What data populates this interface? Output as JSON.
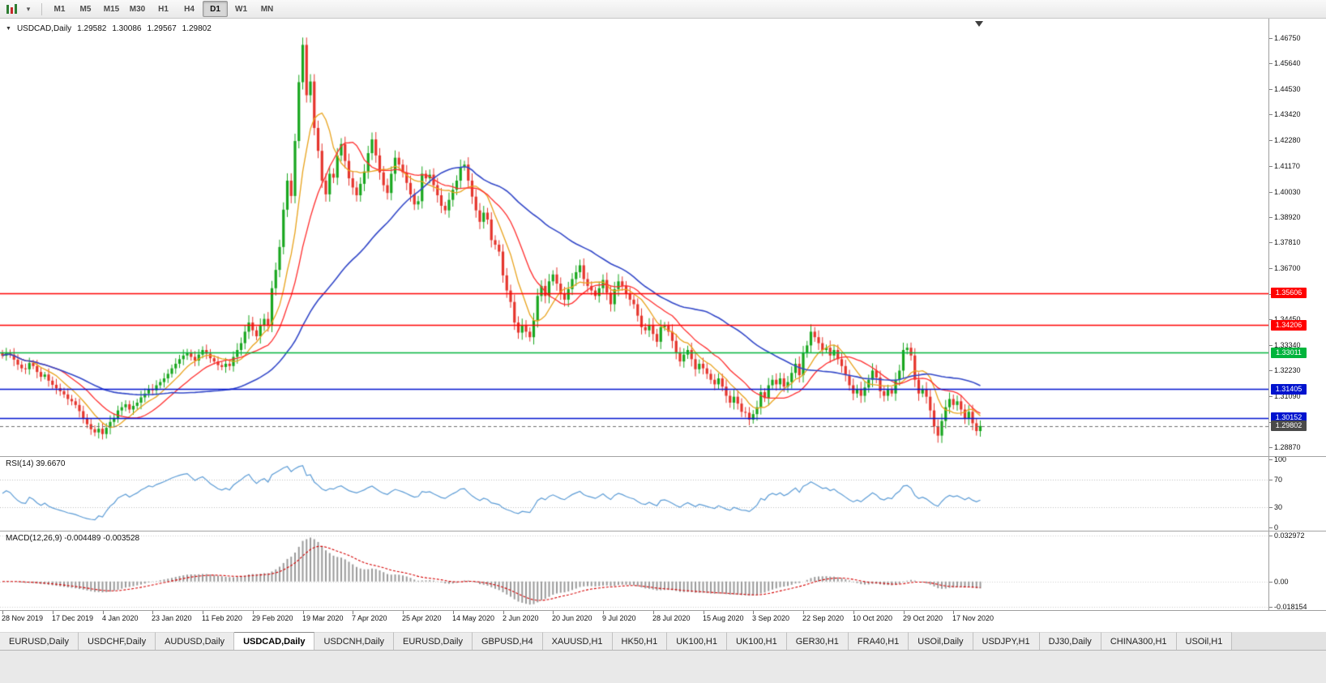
{
  "glyphs": {
    "title_caret": "▼",
    "toolbar_caret": "▾"
  },
  "toolbar": {
    "timeframes": [
      {
        "label": "M1",
        "active": false
      },
      {
        "label": "M5",
        "active": false
      },
      {
        "label": "M15",
        "active": false
      },
      {
        "label": "M30",
        "active": false
      },
      {
        "label": "H1",
        "active": false
      },
      {
        "label": "H4",
        "active": false
      },
      {
        "label": "D1",
        "active": true
      },
      {
        "label": "W1",
        "active": false
      },
      {
        "label": "MN",
        "active": false
      }
    ]
  },
  "chart_data": {
    "type": "candlestick",
    "symbol_period": "USDCAD,Daily",
    "ohlc_current": {
      "open": 1.29582,
      "high": 1.30086,
      "low": 1.29567,
      "close": 1.29802
    },
    "grid": false,
    "ylim": [
      1.2859,
      1.4749
    ],
    "y_ticks": [
      "1.46750",
      "1.45640",
      "1.44530",
      "1.43420",
      "1.42280",
      "1.41170",
      "1.40030",
      "1.38920",
      "1.37810",
      "1.36700",
      "1.35560",
      "1.34450",
      "1.33340",
      "1.32230",
      "1.31090",
      "1.29980",
      "1.28870"
    ],
    "x_labels": [
      "28 Nov 2019",
      "17 Dec 2019",
      "4 Jan 2020",
      "23 Jan 2020",
      "11 Feb 2020",
      "29 Feb 2020",
      "19 Mar 2020",
      "7 Apr 2020",
      "25 Apr 2020",
      "14 May 2020",
      "2 Jun 2020",
      "20 Jun 2020",
      "9 Jul 2020",
      "28 Jul 2020",
      "15 Aug 2020",
      "3 Sep 2020",
      "22 Sep 2020",
      "10 Oct 2020",
      "29 Oct 2020",
      "17 Nov 2020"
    ],
    "x_label_every": 13,
    "bull_color": "#18A61E",
    "bear_color": "#E5342C",
    "first_open": 1.33,
    "closes": [
      1.3287,
      1.33,
      1.3292,
      1.327,
      1.3248,
      1.3232,
      1.3228,
      1.3255,
      1.3242,
      1.3216,
      1.3195,
      1.3205,
      1.3178,
      1.316,
      1.3145,
      1.3132,
      1.3118,
      1.3098,
      1.3088,
      1.3072,
      1.3045,
      1.3015,
      1.2988,
      1.2966,
      1.2952,
      1.2968,
      1.2945,
      1.2972,
      1.2998,
      1.3015,
      1.3048,
      1.3062,
      1.3075,
      1.3052,
      1.3068,
      1.3082,
      1.3105,
      1.3122,
      1.3142,
      1.3136,
      1.3158,
      1.3172,
      1.3188,
      1.3208,
      1.3232,
      1.3252,
      1.3272,
      1.3288,
      1.3298,
      1.3282,
      1.3266,
      1.3292,
      1.3312,
      1.3296,
      1.3276,
      1.3262,
      1.3246,
      1.3238,
      1.3252,
      1.3242,
      1.3282,
      1.3312,
      1.3342,
      1.3392,
      1.3432,
      1.3398,
      1.3372,
      1.3418,
      1.3448,
      1.3422,
      1.3582,
      1.3662,
      1.3762,
      1.3925,
      1.4052,
      1.3985,
      1.4225,
      1.4482,
      1.4645,
      1.4425,
      1.4485,
      1.4282,
      1.4182,
      1.4052,
      1.3992,
      1.4082,
      1.4065,
      1.4162,
      1.4212,
      1.4138,
      1.4062,
      1.4022,
      1.3988,
      1.4038,
      1.4092,
      1.4172,
      1.4232,
      1.4162,
      1.4088,
      1.4032,
      1.3998,
      1.4082,
      1.4152,
      1.4122,
      1.4088,
      1.4042,
      1.3992,
      1.3948,
      1.3962,
      1.4082,
      1.4062,
      1.4078,
      1.4032,
      1.3988,
      1.3942,
      1.3922,
      1.3968,
      1.4012,
      1.4052,
      1.4112,
      1.4122,
      1.4052,
      1.3982,
      1.3922,
      1.3872,
      1.3912,
      1.3882,
      1.3792,
      1.3772,
      1.3742,
      1.3638,
      1.3572,
      1.3522,
      1.3432,
      1.3388,
      1.3418,
      1.3392,
      1.3368,
      1.3442,
      1.3548,
      1.3592,
      1.3548,
      1.3612,
      1.3642,
      1.3602,
      1.3558,
      1.3532,
      1.3578,
      1.3622,
      1.3652,
      1.3682,
      1.3622,
      1.3592,
      1.3572,
      1.3548,
      1.3582,
      1.3618,
      1.3562,
      1.3512,
      1.3578,
      1.3612,
      1.3592,
      1.3558,
      1.3532,
      1.3512,
      1.3462,
      1.3412,
      1.3398,
      1.3422,
      1.3382,
      1.3348,
      1.3412,
      1.3418,
      1.3392,
      1.3352,
      1.3302,
      1.3262,
      1.3292,
      1.3312,
      1.3272,
      1.3228,
      1.3252,
      1.3232,
      1.3208,
      1.3182,
      1.3162,
      1.3188,
      1.3152,
      1.3112,
      1.3082,
      1.3108,
      1.3078,
      1.3042,
      1.3038,
      1.3008,
      1.3032,
      1.3062,
      1.3128,
      1.3102,
      1.3158,
      1.3182,
      1.3162,
      1.3188,
      1.3152,
      1.3172,
      1.3212,
      1.3252,
      1.3202,
      1.3298,
      1.3332,
      1.3392,
      1.3368,
      1.3342,
      1.3312,
      1.3322,
      1.3288,
      1.3312,
      1.3272,
      1.3242,
      1.3202,
      1.3158,
      1.3122,
      1.3142,
      1.3112,
      1.3148,
      1.3182,
      1.3222,
      1.3192,
      1.3132,
      1.3112,
      1.3138,
      1.3122,
      1.3182,
      1.3222,
      1.3312,
      1.3322,
      1.3288,
      1.3182,
      1.3122,
      1.3142,
      1.3108,
      1.3048,
      1.2978,
      1.2938,
      1.3002,
      1.3062,
      1.3098,
      1.3072,
      1.3088,
      1.3052,
      1.3012,
      1.3042,
      1.2992,
      1.2958,
      1.298
    ],
    "overlays": [
      {
        "name": "ma-fast",
        "type": "sma",
        "period": 8,
        "color": "#E8A21B"
      },
      {
        "name": "ma-mid",
        "type": "sma",
        "period": 16,
        "color": "#FF2D2D"
      },
      {
        "name": "ma-slow",
        "type": "sma",
        "period": 45,
        "color": "#3348C8"
      }
    ],
    "hlines": [
      {
        "label": "1.35606",
        "value": 1.35606,
        "color": "#FF0000"
      },
      {
        "label": "1.34206",
        "value": 1.34206,
        "color": "#FF0000"
      },
      {
        "label": "1.33011",
        "value": 1.33011,
        "color": "#00B43C"
      },
      {
        "label": "1.31405",
        "value": 1.31405,
        "color": "#0013CE"
      },
      {
        "label": "1.30152",
        "value": 1.30152,
        "color": "#0013CE"
      }
    ],
    "current_price": {
      "label": "1.29802",
      "value": 1.29802,
      "color": "#4A4A4A"
    },
    "indicators": {
      "rsi": {
        "label": "RSI(14) 39.6670",
        "period": 14,
        "value": 39.667,
        "levels": [
          70,
          30
        ],
        "y_ticks": [
          "100",
          "70",
          "30",
          "0"
        ],
        "ylim": [
          0,
          100
        ],
        "color": "#5B9BD5"
      },
      "macd": {
        "label": "MACD(12,26,9) -0.004489 -0.003528",
        "fast": 12,
        "slow": 26,
        "signal_period": 9,
        "value": -0.004489,
        "signal_value": -0.003528,
        "y_ticks": [
          "0.032972",
          "0.00",
          "-0.018154"
        ],
        "ylim": [
          -0.018154,
          0.032972
        ],
        "histogram_color": "#9A9A9A",
        "signal_color": "#D40000"
      }
    }
  },
  "tabs": [
    {
      "label": "EURUSD,Daily",
      "active": false
    },
    {
      "label": "USDCHF,Daily",
      "active": false
    },
    {
      "label": "AUDUSD,Daily",
      "active": false
    },
    {
      "label": "USDCAD,Daily",
      "active": true
    },
    {
      "label": "USDCNH,Daily",
      "active": false
    },
    {
      "label": "EURUSD,Daily",
      "active": false
    },
    {
      "label": "GBPUSD,H4",
      "active": false
    },
    {
      "label": "XAUUSD,H1",
      "active": false
    },
    {
      "label": "HK50,H1",
      "active": false
    },
    {
      "label": "UK100,H1",
      "active": false
    },
    {
      "label": "UK100,H1",
      "active": false
    },
    {
      "label": "GER30,H1",
      "active": false
    },
    {
      "label": "FRA40,H1",
      "active": false
    },
    {
      "label": "USOil,Daily",
      "active": false
    },
    {
      "label": "USDJPY,H1",
      "active": false
    },
    {
      "label": "DJ30,Daily",
      "active": false
    },
    {
      "label": "CHINA300,H1",
      "active": false
    },
    {
      "label": "USOil,H1",
      "active": false
    }
  ]
}
